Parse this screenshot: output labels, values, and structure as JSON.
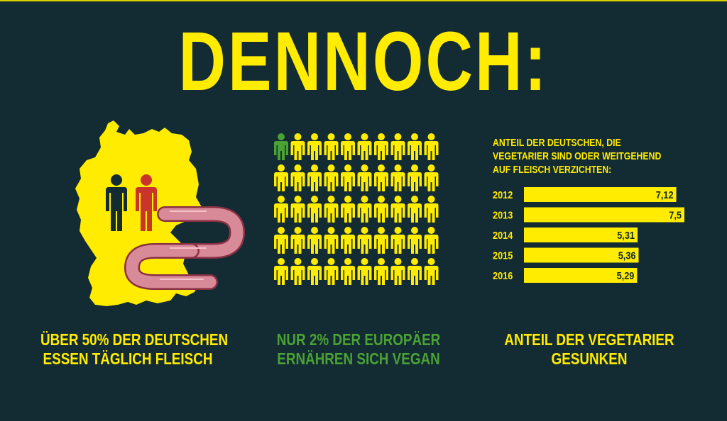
{
  "title": "DENNOCH:",
  "panels": {
    "meat": {
      "caption_line1": "ÜBER 50% DER DEUTSCHEN",
      "caption_line2": "ESSEN TÄGLICH FLEISCH"
    },
    "vegan": {
      "caption_line1": "NUR 2% DER EUROPÄER",
      "caption_line2": "ERNÄHREN SICH VEGAN",
      "grid_total": 50,
      "grid_highlighted": 1
    },
    "vegetarian": {
      "caption_line1": "ANTEIL DER VEGETARIER",
      "caption_line2": "GESUNKEN"
    }
  },
  "colors": {
    "background": "#132b33",
    "yellow": "#ffec00",
    "green": "#4aa234",
    "red": "#c9352a",
    "navy": "#132b33",
    "sausage": "#d98a98"
  },
  "icons": {
    "map": "germany-map-icon",
    "person": "person-icon",
    "sausage": "sausage-icon"
  },
  "chart_data": {
    "type": "bar",
    "orientation": "horizontal",
    "title_lines": [
      "ANTEIL DER DEUTSCHEN, DIE",
      "VEGETARIER SIND ODER WEITGEHEND",
      "AUF FLEISCH VERZICHTEN:"
    ],
    "categories": [
      "2012",
      "2013",
      "2014",
      "2015",
      "2016"
    ],
    "values": [
      7.12,
      7.5,
      5.31,
      5.36,
      5.29
    ],
    "value_labels": [
      "7,12",
      "7,5",
      "5,31",
      "5,36",
      "5,29"
    ],
    "xlim": [
      0,
      7.5
    ],
    "grid": false,
    "legend": "none"
  }
}
